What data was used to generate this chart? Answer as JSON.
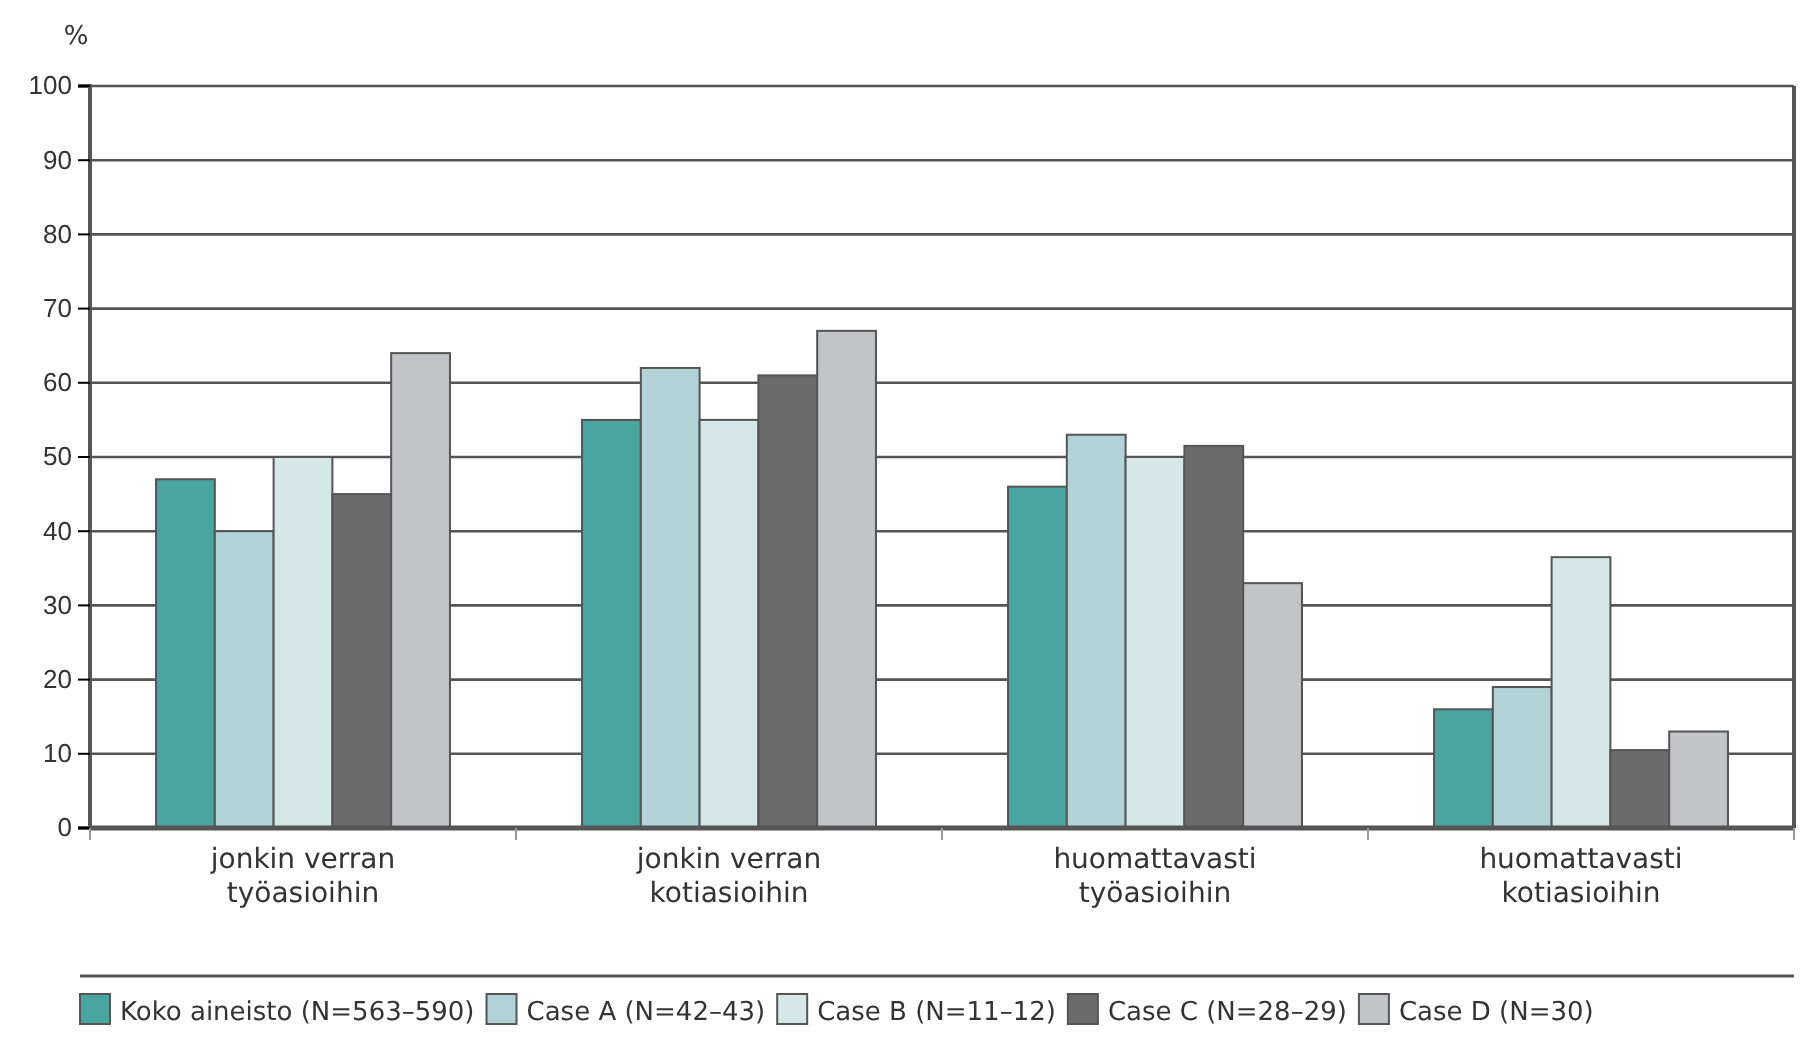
{
  "chart_data": {
    "type": "bar",
    "ylabel": "%",
    "categories": [
      "jonkin verran\ntyöasioihin",
      "jonkin verran\nkotiasioihin",
      "huomattavasti\ntyöasioihin",
      "huomattavasti\nkotiasioihin"
    ],
    "series": [
      {
        "name": "Koko aineisto (N=563–590)",
        "color": "#48a5a0",
        "values": [
          47,
          55,
          46,
          16
        ]
      },
      {
        "name": "Case A (N=42–43)",
        "color": "#b1d2d7",
        "values": [
          40,
          62,
          53,
          19
        ]
      },
      {
        "name": "Case B (N=11–12)",
        "color": "#d6e7e7",
        "values": [
          50,
          55,
          50,
          36.5
        ]
      },
      {
        "name": "Case C (N=28–29)",
        "color": "#6b6b6b",
        "values": [
          45,
          61,
          51.5,
          10.5
        ]
      },
      {
        "name": "Case D (N=30)",
        "color": "#c3c4c8",
        "values": [
          64,
          67,
          33,
          13
        ]
      }
    ],
    "ylim": [
      0,
      100
    ],
    "yticks": [
      0,
      10,
      20,
      30,
      40,
      50,
      60,
      70,
      80,
      90,
      100
    ],
    "grid": "y",
    "legend": "bottom"
  }
}
